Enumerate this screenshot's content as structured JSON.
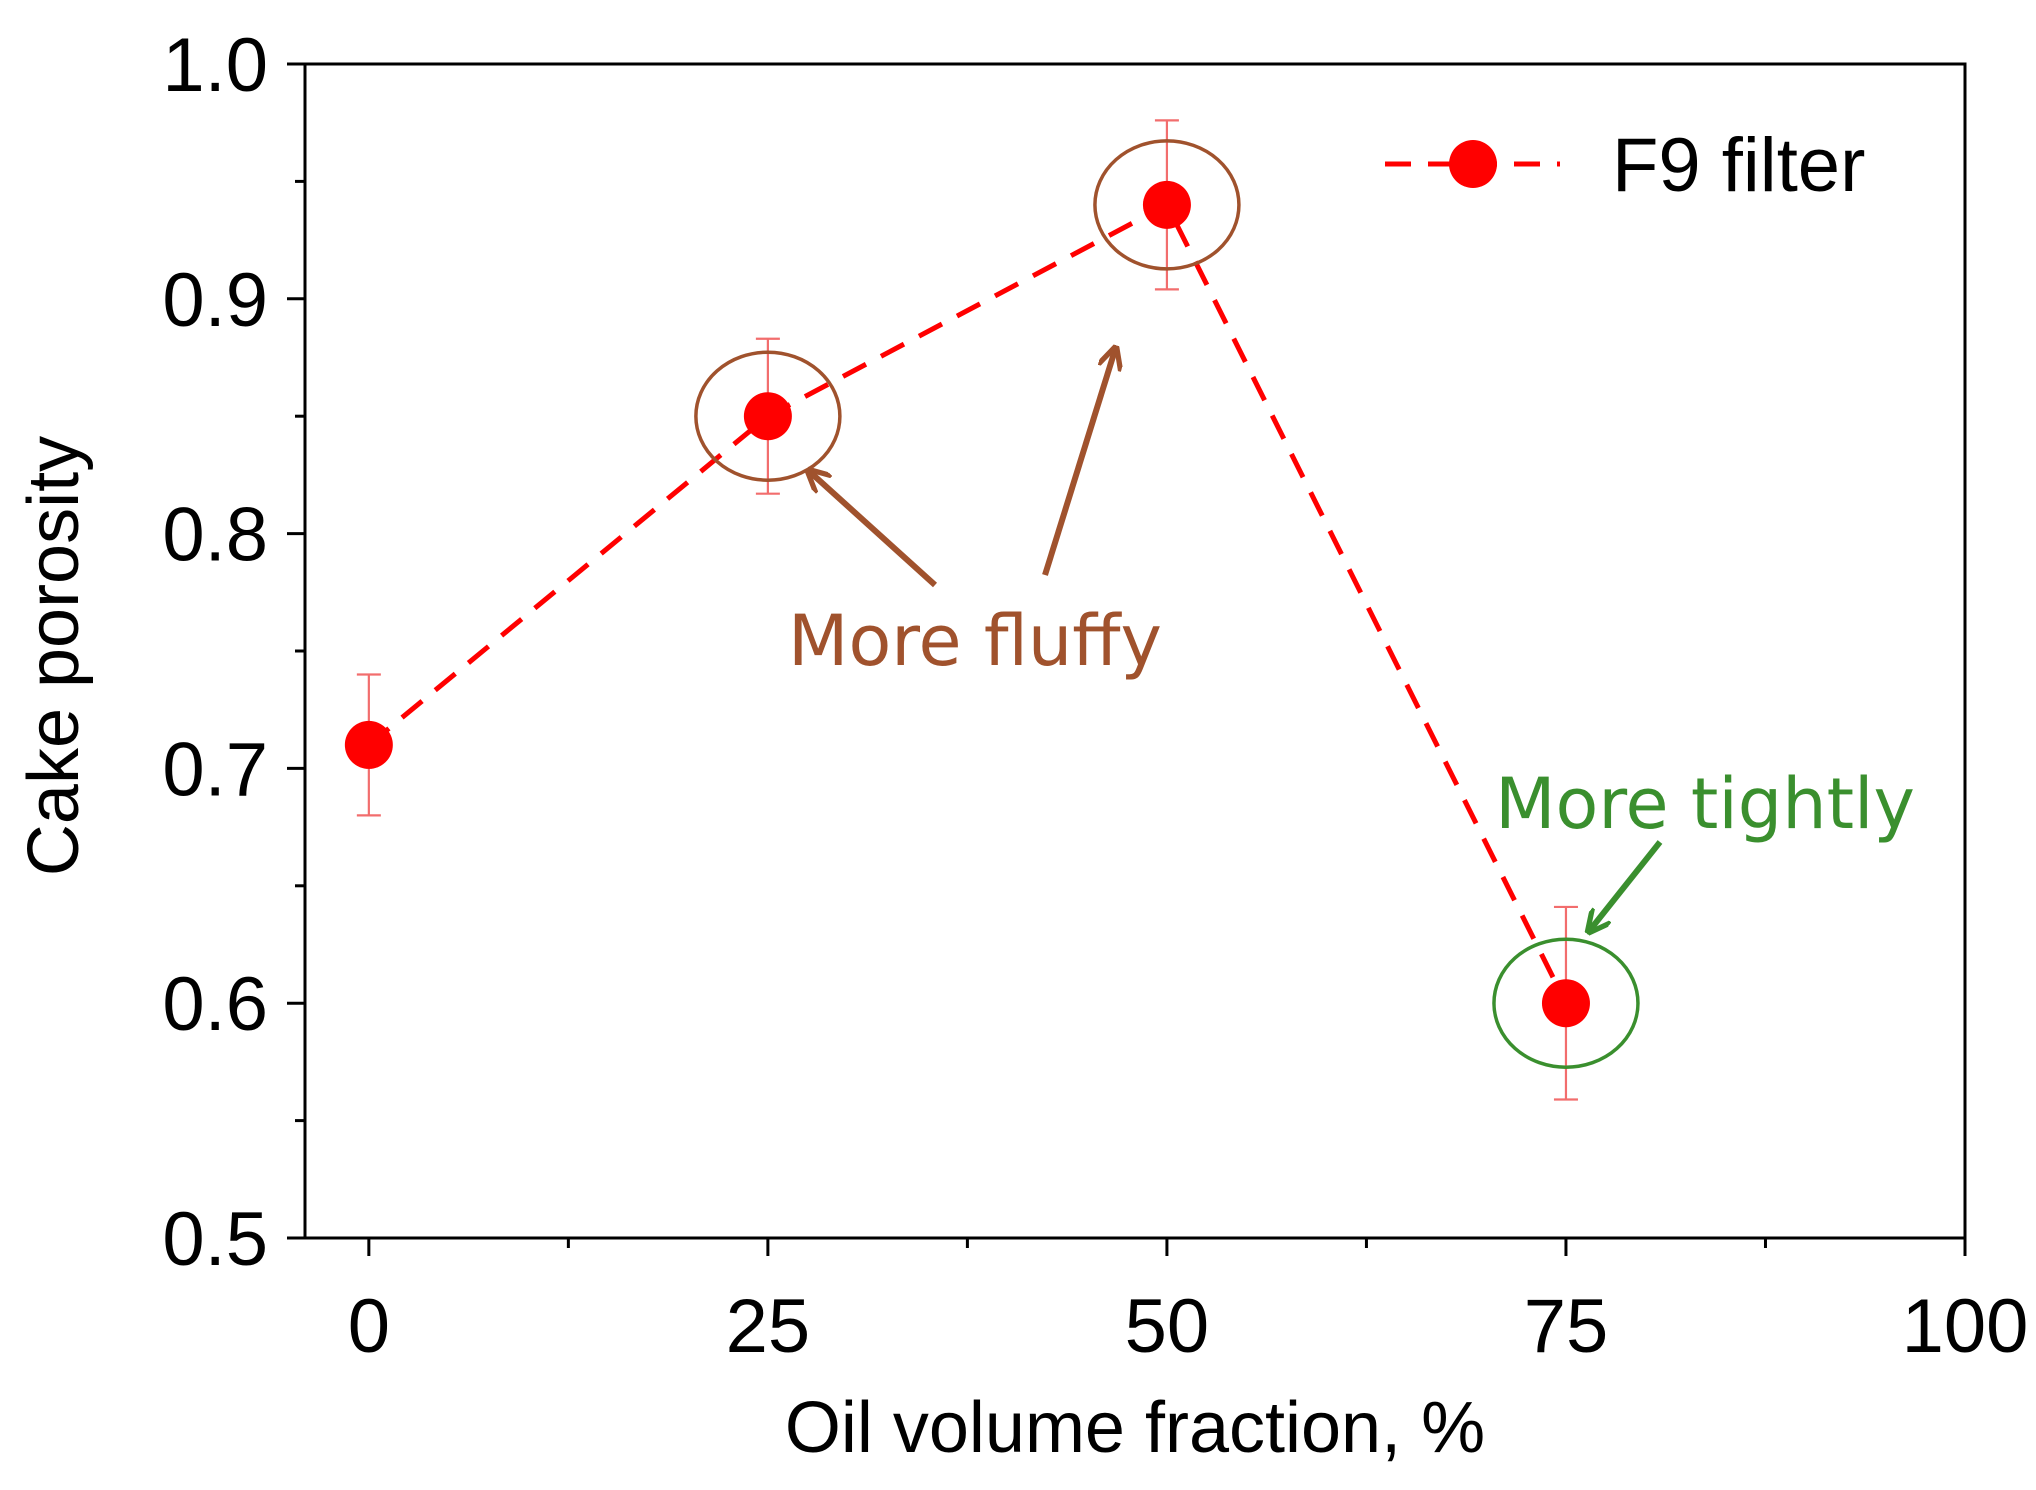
{
  "chart_data": {
    "type": "line",
    "xlabel": "Oil volume fraction, %",
    "ylabel": "Cake porosity",
    "xlim": [
      -4,
      100
    ],
    "ylim": [
      0.5,
      1.0
    ],
    "xticks": [
      0,
      25,
      50,
      75,
      100
    ],
    "xtick_labels": [
      "0",
      "25",
      "50",
      "75",
      "100"
    ],
    "xminor": [
      12.5,
      37.5,
      62.5,
      87.5
    ],
    "yticks": [
      0.5,
      0.6,
      0.7,
      0.8,
      0.9,
      1.0
    ],
    "ytick_labels": [
      "0.5",
      "0.6",
      "0.7",
      "0.8",
      "0.9",
      "1.0"
    ],
    "yminor": [
      0.55,
      0.65,
      0.75,
      0.85,
      0.95
    ],
    "grid": false,
    "legend_position": "top-right",
    "series": [
      {
        "name": "F9 filter",
        "color": "#ff0000",
        "line_style": "dashed",
        "marker": "circle",
        "x": [
          0,
          25,
          50,
          75
        ],
        "y": [
          0.71,
          0.85,
          0.94,
          0.6
        ],
        "error": [
          0.03,
          0.033,
          0.036,
          0.041
        ]
      }
    ],
    "annotations": [
      {
        "text": "More fluffy",
        "color": "#a0522d",
        "targets": [
          25,
          50
        ]
      },
      {
        "text": "More tightly",
        "color": "#3a8f2e",
        "targets": [
          75
        ]
      }
    ]
  }
}
